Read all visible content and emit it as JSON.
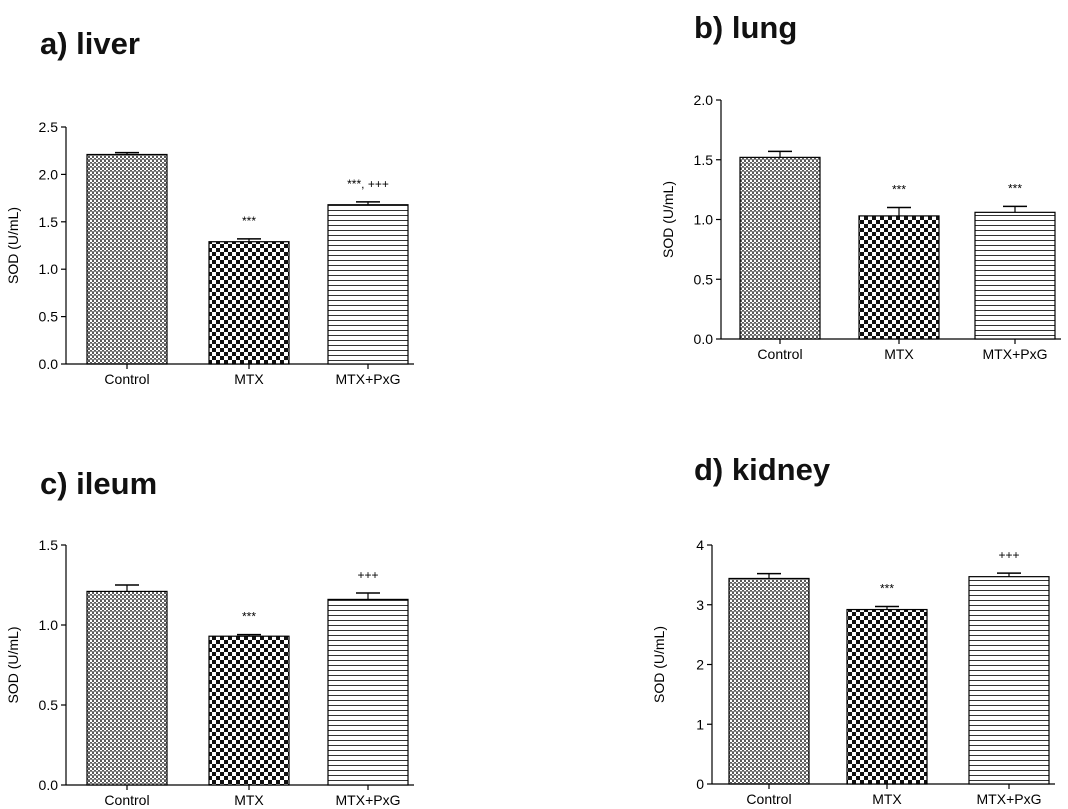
{
  "chart_data": [
    {
      "type": "bar",
      "panel_label": "a) liver",
      "ylabel": "SOD (U/mL)",
      "categories": [
        "Control",
        "MTX",
        "MTX+PxG"
      ],
      "values": [
        2.21,
        1.29,
        1.68
      ],
      "errors": [
        0.02,
        0.03,
        0.03
      ],
      "annotations": [
        "",
        "***",
        "***, +++"
      ],
      "ylim": [
        0,
        2.5
      ],
      "yticks": [
        "0.0",
        "0.5",
        "1.0",
        "1.5",
        "2.0",
        "2.5"
      ],
      "ytick_values": [
        0,
        0.5,
        1.0,
        1.5,
        2.0,
        2.5
      ],
      "grid": false
    },
    {
      "type": "bar",
      "panel_label": "b) lung",
      "ylabel": "SOD (U/mL)",
      "categories": [
        "Control",
        "MTX",
        "MTX+PxG"
      ],
      "values": [
        1.52,
        1.03,
        1.06
      ],
      "errors": [
        0.05,
        0.07,
        0.05
      ],
      "annotations": [
        "",
        "***",
        "***"
      ],
      "ylim": [
        0,
        2.0
      ],
      "yticks": [
        "0.0",
        "0.5",
        "1.0",
        "1.5",
        "2.0"
      ],
      "ytick_values": [
        0,
        0.5,
        1.0,
        1.5,
        2.0
      ],
      "grid": false
    },
    {
      "type": "bar",
      "panel_label": "c) ileum",
      "ylabel": "SOD (U/mL)",
      "categories": [
        "Control",
        "MTX",
        "MTX+PxG"
      ],
      "values": [
        1.21,
        0.93,
        1.16
      ],
      "errors": [
        0.04,
        0.01,
        0.04
      ],
      "annotations": [
        "",
        "***",
        "+++"
      ],
      "ylim": [
        0,
        1.5
      ],
      "yticks": [
        "0.0",
        "0.5",
        "1.0",
        "1.5"
      ],
      "ytick_values": [
        0,
        0.5,
        1.0,
        1.5
      ],
      "grid": false
    },
    {
      "type": "bar",
      "panel_label": "d) kidney",
      "ylabel": "SOD (U/mL)",
      "categories": [
        "Control",
        "MTX",
        "MTX+PxG"
      ],
      "values": [
        3.44,
        2.92,
        3.47
      ],
      "errors": [
        0.08,
        0.05,
        0.06
      ],
      "annotations": [
        "",
        "***",
        "+++"
      ],
      "ylim": [
        0,
        4
      ],
      "yticks": [
        "0",
        "1",
        "2",
        "3",
        "4"
      ],
      "ytick_values": [
        0,
        1,
        2,
        3,
        4
      ],
      "grid": false
    }
  ]
}
